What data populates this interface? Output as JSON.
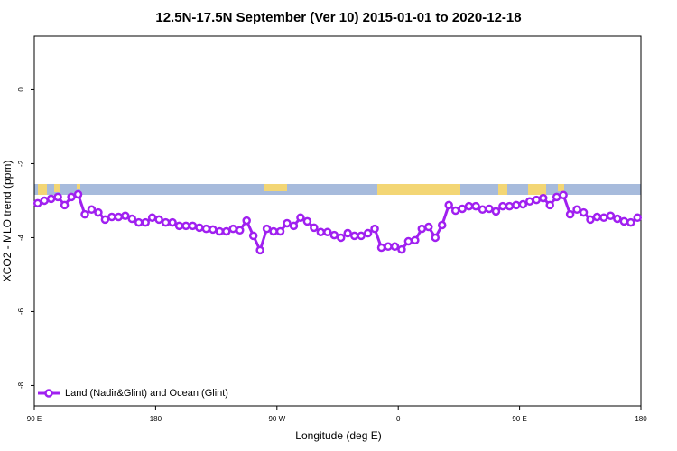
{
  "chart_data": {
    "type": "line",
    "title": "12.5N-17.5N September (Ver 10)   2015-01-01 to 2020-12-18",
    "x_label": "Longitude (deg E)",
    "y_label": "XCO2 - MLO trend (ppm)",
    "xlim": [
      90,
      540
    ],
    "ylim": [
      -8.55,
      1.45
    ],
    "xticks": [
      {
        "value": 90,
        "label": "90 E"
      },
      180,
      {
        "value": 270,
        "label": "90 W"
      },
      {
        "value": 360,
        "label": "0"
      },
      {
        "value": 450,
        "label": "90 E"
      },
      {
        "value": 540,
        "label": "180"
      }
    ],
    "yticks": [
      0,
      -2,
      -4,
      -6,
      -8
    ],
    "legend": "bottomleft",
    "x": [
      92.5,
      97.5,
      102.5,
      107.5,
      112.5,
      117.5,
      122.5,
      127.5,
      132.5,
      137.5,
      142.5,
      147.5,
      152.5,
      157.5,
      162.5,
      167.5,
      172.5,
      177.5,
      182.5,
      187.5,
      192.5,
      197.5,
      202.5,
      207.5,
      212.5,
      217.5,
      222.5,
      227.5,
      232.5,
      237.5,
      242.5,
      247.5,
      252.5,
      257.5,
      262.5,
      267.5,
      272.5,
      277.5,
      282.5,
      287.5,
      292.5,
      297.5,
      302.5,
      307.5,
      312.5,
      317.5,
      322.5,
      327.5,
      332.5,
      337.5,
      342.5,
      347.5,
      352.5,
      357.5,
      362.5,
      367.5,
      372.5,
      377.5,
      382.5,
      387.5,
      392.5,
      397.5,
      402.5,
      407.5,
      412.5,
      417.5,
      422.5,
      427.5,
      432.5,
      437.5,
      442.5,
      447.5,
      452.5,
      457.5,
      462.5,
      467.5,
      472.5,
      477.5,
      482.5,
      487.5,
      492.5,
      497.5,
      502.5,
      507.5,
      512.5,
      517.5,
      522.5,
      527.5,
      532.5,
      537.5
    ],
    "series": [
      {
        "name": "Land (Nadir&Glint) and Ocean (Glint)",
        "color": "#a020f0",
        "values": [
          -3.07,
          -3.0,
          -2.95,
          -2.9,
          -3.12,
          -2.9,
          -2.83,
          -3.37,
          -3.24,
          -3.32,
          -3.51,
          -3.44,
          -3.44,
          -3.41,
          -3.49,
          -3.59,
          -3.59,
          -3.46,
          -3.51,
          -3.59,
          -3.59,
          -3.68,
          -3.68,
          -3.68,
          -3.73,
          -3.76,
          -3.78,
          -3.83,
          -3.83,
          -3.76,
          -3.8,
          -3.54,
          -3.95,
          -4.34,
          -3.76,
          -3.83,
          -3.83,
          -3.61,
          -3.68,
          -3.46,
          -3.56,
          -3.73,
          -3.85,
          -3.85,
          -3.93,
          -4.0,
          -3.88,
          -3.95,
          -3.95,
          -3.88,
          -3.76,
          -4.27,
          -4.24,
          -4.24,
          -4.32,
          -4.1,
          -4.07,
          -3.76,
          -3.71,
          -4.0,
          -3.66,
          -3.12,
          -3.27,
          -3.22,
          -3.15,
          -3.15,
          -3.24,
          -3.22,
          -3.29,
          -3.15,
          -3.15,
          -3.12,
          -3.1,
          -3.02,
          -2.98,
          -2.93,
          -3.12,
          -2.9,
          -2.85,
          -3.37,
          -3.24,
          -3.32,
          -3.51,
          -3.44,
          -3.46,
          -3.41,
          -3.49,
          -3.56,
          -3.59,
          -3.46
        ]
      }
    ]
  }
}
